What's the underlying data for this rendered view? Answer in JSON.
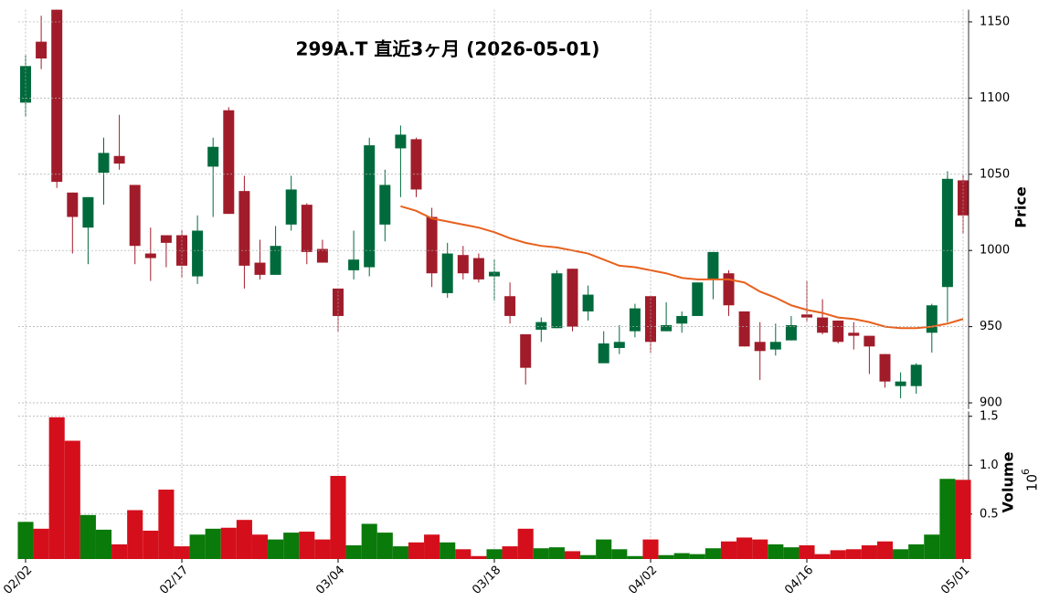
{
  "chart_data": {
    "type": "candlestick",
    "title": "299A.T  直近3ヶ月  (2026-05-01)",
    "ylabel": "Price",
    "grid": true,
    "up_color": "#006a3c",
    "down_color": "#a11c2a",
    "categories": [
      "02/02",
      null,
      null,
      null,
      null,
      null,
      null,
      null,
      null,
      null,
      "02/17",
      null,
      null,
      null,
      null,
      null,
      null,
      null,
      null,
      null,
      "03/04",
      null,
      null,
      null,
      null,
      null,
      null,
      null,
      null,
      null,
      "03/18",
      null,
      null,
      null,
      null,
      null,
      null,
      null,
      null,
      null,
      "04/02",
      null,
      null,
      null,
      null,
      null,
      null,
      null,
      null,
      null,
      "04/16",
      null,
      null,
      null,
      null,
      null,
      null,
      null,
      null,
      null,
      "05/01"
    ],
    "open": [
      1097,
      1137,
      1160,
      1038,
      1015,
      1051,
      1062,
      1043,
      998,
      1010,
      1010,
      983,
      1055,
      1092,
      1039,
      992,
      984,
      1017,
      1030,
      1001,
      975,
      987,
      989,
      1017,
      1067,
      1073,
      1022,
      972,
      997,
      995,
      983,
      970,
      945,
      948,
      949,
      988,
      960,
      926,
      936,
      947,
      970,
      947,
      952,
      957,
      981,
      985,
      960,
      940,
      935,
      941,
      958,
      956,
      954,
      946,
      944,
      932,
      911,
      911,
      946,
      976,
      1046
    ],
    "high": [
      1128,
      1154,
      1165,
      1038,
      1035,
      1074,
      1089,
      1043,
      1015,
      1010,
      1013,
      1023,
      1074,
      1094,
      1049,
      1007,
      1016,
      1049,
      1031,
      1007,
      975,
      1013,
      1074,
      1053,
      1082,
      1074,
      1028,
      1005,
      1003,
      998,
      994,
      979,
      945,
      956,
      987,
      988,
      977,
      947,
      951,
      965,
      970,
      966,
      960,
      979,
      999,
      987,
      960,
      953,
      952,
      957,
      980,
      968,
      954,
      953,
      944,
      932,
      920,
      926,
      965,
      1052,
      1050
    ],
    "low": [
      1088,
      1119,
      1041,
      998,
      991,
      1030,
      1053,
      991,
      980,
      989,
      982,
      978,
      1022,
      1024,
      975,
      981,
      984,
      1013,
      991,
      992,
      947,
      981,
      983,
      1006,
      1035,
      1035,
      976,
      969,
      981,
      979,
      967,
      952,
      912,
      940,
      949,
      947,
      954,
      926,
      932,
      943,
      933,
      947,
      946,
      957,
      968,
      957,
      937,
      915,
      931,
      941,
      953,
      945,
      939,
      935,
      919,
      910,
      903,
      906,
      933,
      953,
      1011
    ],
    "close": [
      1121,
      1126,
      1045,
      1022,
      1035,
      1064,
      1057,
      1003,
      995,
      1005,
      990,
      1013,
      1068,
      1024,
      990,
      984,
      1003,
      1040,
      999,
      992,
      957,
      994,
      1069,
      1043,
      1076,
      1040,
      985,
      998,
      985,
      981,
      986,
      957,
      923,
      953,
      985,
      950,
      971,
      939,
      940,
      962,
      940,
      951,
      957,
      979,
      999,
      964,
      937,
      934,
      940,
      951,
      956,
      946,
      940,
      944,
      937,
      914,
      914,
      925,
      964,
      1047,
      1023
    ],
    "ylim": [
      896,
      1158
    ],
    "yticks": [
      900,
      950,
      1000,
      1050,
      1100,
      1150
    ],
    "ma": {
      "color": "#e8601c",
      "values": [
        null,
        null,
        null,
        null,
        null,
        null,
        null,
        null,
        null,
        null,
        null,
        null,
        null,
        null,
        null,
        null,
        null,
        null,
        null,
        null,
        null,
        null,
        null,
        null,
        1029,
        1026,
        1021,
        1019,
        1017,
        1015,
        1012,
        1008,
        1005,
        1003,
        1002,
        1000,
        998,
        994,
        990,
        989,
        987,
        985,
        982,
        981,
        981,
        981,
        979,
        973,
        969,
        964,
        961,
        959,
        956,
        955,
        953,
        950,
        949,
        949,
        950,
        952,
        955
      ]
    },
    "volume": {
      "label": "Volume",
      "offset_base": "10",
      "offset_exponent": "6",
      "up_color": "#0a7a0a",
      "down_color": "#d40f1b",
      "values": [
        0.42,
        0.35,
        1.49,
        1.25,
        0.49,
        0.34,
        0.19,
        0.54,
        0.33,
        0.75,
        0.17,
        0.29,
        0.35,
        0.36,
        0.44,
        0.29,
        0.24,
        0.31,
        0.32,
        0.24,
        0.89,
        0.18,
        0.4,
        0.31,
        0.17,
        0.21,
        0.29,
        0.21,
        0.14,
        0.07,
        0.14,
        0.17,
        0.35,
        0.15,
        0.16,
        0.12,
        0.08,
        0.24,
        0.14,
        0.07,
        0.24,
        0.08,
        0.1,
        0.09,
        0.15,
        0.22,
        0.26,
        0.24,
        0.19,
        0.16,
        0.18,
        0.09,
        0.13,
        0.14,
        0.18,
        0.22,
        0.14,
        0.19,
        0.29,
        0.86,
        0.85
      ],
      "ylim": [
        0.04,
        1.55
      ],
      "yticks": [
        0.5,
        {
          "value": 1,
          "label": "1.0"
        },
        1.5
      ]
    }
  }
}
